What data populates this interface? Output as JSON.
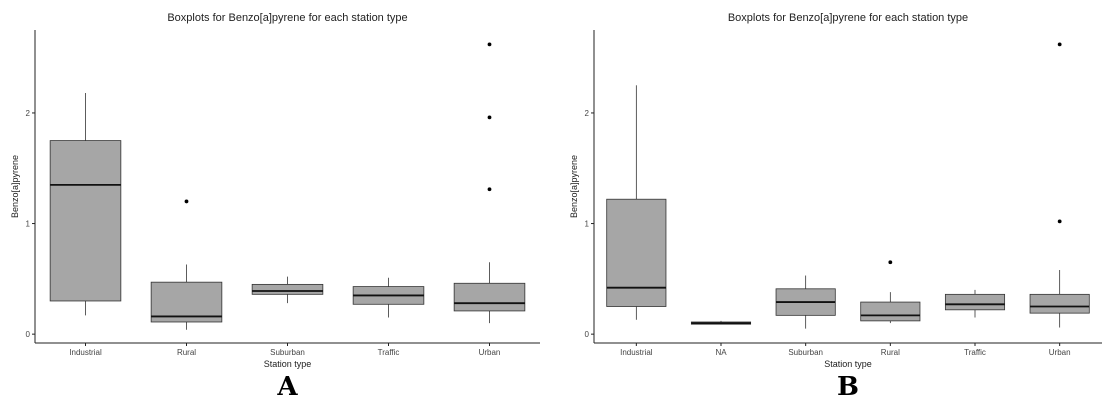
{
  "chart_data": [
    {
      "type": "boxplot",
      "panel_label": "A",
      "title": "Boxplots for Benzo[a]pyrene for each station type",
      "xlabel": "Station type",
      "ylabel": "Benzo[a]pyrene",
      "ylim": [
        -0.08,
        2.75
      ],
      "yticks": [
        0,
        1,
        2
      ],
      "grid": false,
      "colors": {
        "box_fill": "#a6a6a6",
        "outline": "#333333",
        "median": "#111111"
      },
      "categories": [
        "Industrial",
        "Rural",
        "Suburban",
        "Traffic",
        "Urban"
      ],
      "boxes": [
        {
          "category": "Industrial",
          "whisker_low": 0.17,
          "q1": 0.3,
          "median": 1.35,
          "q3": 1.75,
          "whisker_high": 2.18,
          "outliers": []
        },
        {
          "category": "Rural",
          "whisker_low": 0.04,
          "q1": 0.11,
          "median": 0.16,
          "q3": 0.47,
          "whisker_high": 0.63,
          "outliers": [
            1.2
          ]
        },
        {
          "category": "Suburban",
          "whisker_low": 0.28,
          "q1": 0.36,
          "median": 0.39,
          "q3": 0.45,
          "whisker_high": 0.52,
          "outliers": []
        },
        {
          "category": "Traffic",
          "whisker_low": 0.15,
          "q1": 0.27,
          "median": 0.35,
          "q3": 0.43,
          "whisker_high": 0.51,
          "outliers": []
        },
        {
          "category": "Urban",
          "whisker_low": 0.1,
          "q1": 0.21,
          "median": 0.28,
          "q3": 0.46,
          "whisker_high": 0.65,
          "outliers": [
            1.31,
            1.96,
            2.62
          ]
        }
      ]
    },
    {
      "type": "boxplot",
      "panel_label": "B",
      "title": "Boxplots for Benzo[a]pyrene for each station type",
      "xlabel": "Station type",
      "ylabel": "Benzo[a]pyrene",
      "ylim": [
        -0.08,
        2.75
      ],
      "yticks": [
        0,
        1,
        2
      ],
      "grid": false,
      "colors": {
        "box_fill": "#a6a6a6",
        "outline": "#333333",
        "median": "#111111"
      },
      "categories": [
        "Industrial",
        "NA",
        "Suburban",
        "Rural",
        "Traffic",
        "Urban"
      ],
      "boxes": [
        {
          "category": "Industrial",
          "whisker_low": 0.13,
          "q1": 0.25,
          "median": 0.42,
          "q3": 1.22,
          "whisker_high": 2.25,
          "outliers": []
        },
        {
          "category": "NA",
          "whisker_low": 0.09,
          "q1": 0.09,
          "median": 0.1,
          "q3": 0.11,
          "whisker_high": 0.12,
          "outliers": []
        },
        {
          "category": "Suburban",
          "whisker_low": 0.05,
          "q1": 0.17,
          "median": 0.29,
          "q3": 0.41,
          "whisker_high": 0.53,
          "outliers": []
        },
        {
          "category": "Rural",
          "whisker_low": 0.1,
          "q1": 0.12,
          "median": 0.17,
          "q3": 0.29,
          "whisker_high": 0.38,
          "outliers": [
            0.65
          ]
        },
        {
          "category": "Traffic",
          "whisker_low": 0.15,
          "q1": 0.22,
          "median": 0.27,
          "q3": 0.36,
          "whisker_high": 0.4,
          "outliers": []
        },
        {
          "category": "Urban",
          "whisker_low": 0.06,
          "q1": 0.19,
          "median": 0.25,
          "q3": 0.36,
          "whisker_high": 0.58,
          "outliers": [
            1.02,
            2.62
          ]
        }
      ]
    }
  ]
}
